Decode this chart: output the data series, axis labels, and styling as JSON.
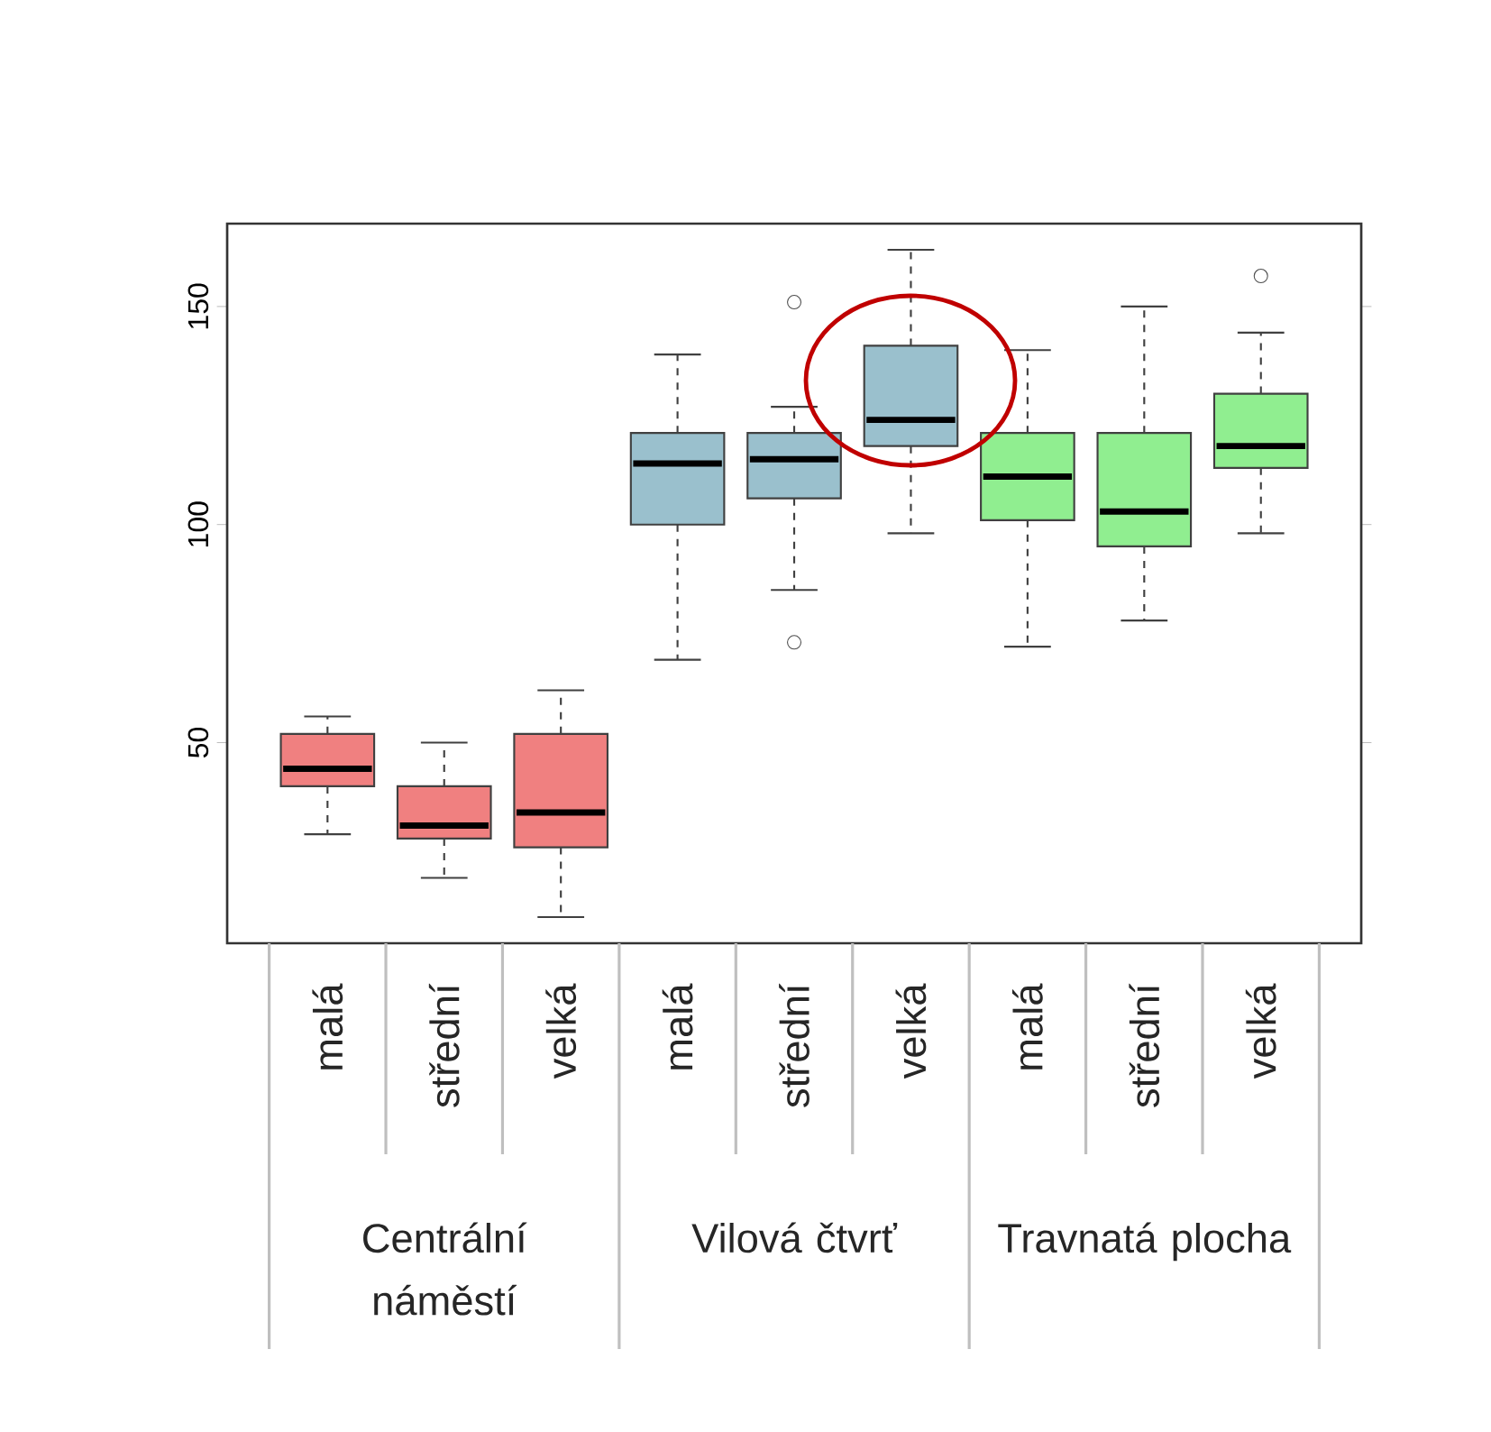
{
  "chart_data": {
    "type": "box",
    "categories": [
      "malá",
      "střední",
      "velká",
      "malá",
      "střední",
      "velká",
      "malá",
      "střední",
      "velká"
    ],
    "series": [
      {
        "color": "#f08080",
        "boxes": [
          {
            "low": 29,
            "q1": 40,
            "median": 44,
            "q3": 52,
            "high": 56
          },
          {
            "low": 19,
            "q1": 28,
            "median": 31,
            "q3": 40,
            "high": 50
          },
          {
            "low": 10,
            "q1": 26,
            "median": 34,
            "q3": 52,
            "high": 62
          },
          null,
          null,
          null,
          null,
          null,
          null
        ]
      },
      {
        "color": "#9ac0cd",
        "boxes": [
          null,
          null,
          null,
          {
            "low": 69,
            "q1": 100,
            "median": 114,
            "q3": 121,
            "high": 139
          },
          {
            "low": 85,
            "q1": 106,
            "median": 115,
            "q3": 121,
            "high": 127,
            "outliers": [
              151,
              73
            ]
          },
          {
            "low": 98,
            "q1": 118,
            "median": 124,
            "q3": 141,
            "high": 163
          },
          null,
          null,
          null
        ]
      },
      {
        "color": "#90ee90",
        "boxes": [
          null,
          null,
          null,
          null,
          null,
          null,
          {
            "low": 72,
            "q1": 101,
            "median": 111,
            "q3": 121,
            "high": 140
          },
          {
            "low": 78,
            "q1": 95,
            "median": 103,
            "q3": 121,
            "high": 150
          },
          {
            "low": 98,
            "q1": 113,
            "median": 118,
            "q3": 130,
            "high": 144,
            "outliers": [
              157
            ]
          }
        ]
      }
    ],
    "annotations": [
      "Centrální náměstí",
      "Vilová čtvrť",
      "Travnatá plocha"
    ],
    "ylim": [
      4,
      169
    ],
    "yticks": [
      50,
      100,
      150
    ]
  }
}
